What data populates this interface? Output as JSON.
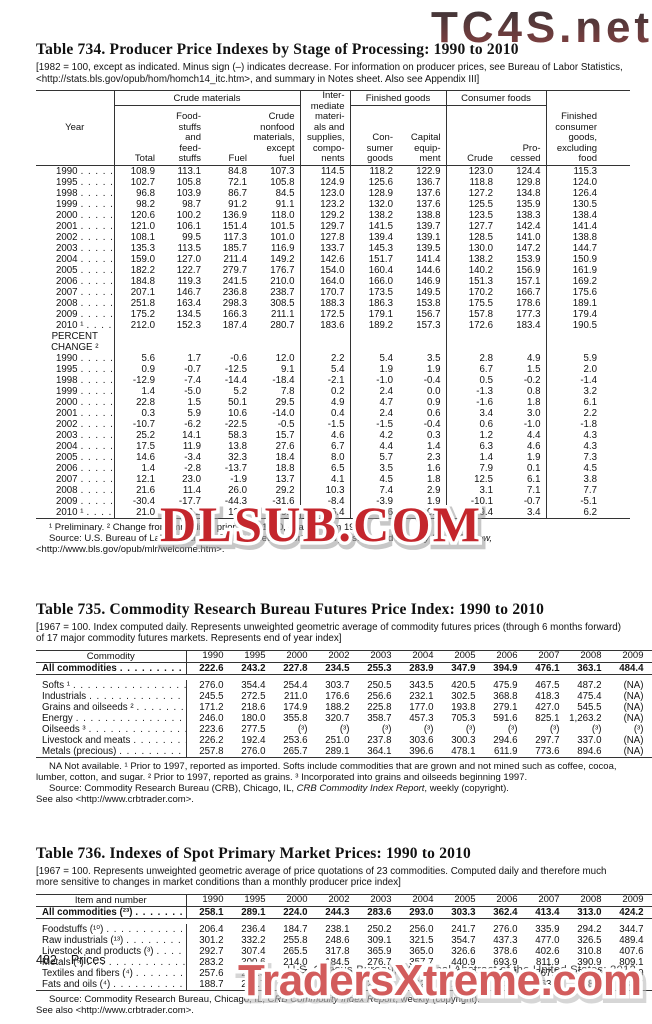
{
  "watermarks": {
    "tc4s": "TC4S.net",
    "dlsub": "DLSUB.COM",
    "traders": "TradersXtreme.com"
  },
  "t734": {
    "title": "Table 734. Producer Price Indexes by Stage of Processing: 1990 to 2010",
    "note": "[1982 = 100, except as indicated. Minus sign (–) indicates decrease. For information on producer prices, see Bureau of Labor Statistics, <http://stats.bls.gov/opub/hom/homch14_itc.htm>, and summary in Notes sheet. Also see Appendix III]",
    "headers": {
      "year": "Year",
      "crude_group": "Crude materials",
      "total": "Total",
      "foodstuffs": "Food-\nstuffs\nand\nfeed-\nstuffs",
      "fuel": "Fuel",
      "crude_nonfood": "Crude\nnonfood\nmaterials,\nexcept\nfuel",
      "intermediate": "Inter-\nmediate\nmateri-\nals and\nsupplies,\ncompo-\nnents",
      "finished_group": "Finished goods",
      "consumer_goods": "Con-\nsumer\ngoods",
      "capital_equipment": "Capital\nequip-\nment",
      "consumer_foods_group": "Consumer foods",
      "crude": "Crude",
      "processed": "Pro-\ncessed",
      "finished_excl_food": "Finished\nconsumer\ngoods,\nexcluding\nfood"
    },
    "rows": [
      {
        "label": "1990",
        "values": [
          "108.9",
          "113.1",
          "84.8",
          "107.3",
          "114.5",
          "118.2",
          "122.9",
          "123.0",
          "124.4",
          "115.3"
        ]
      },
      {
        "label": "1995",
        "values": [
          "102.7",
          "105.8",
          "72.1",
          "105.8",
          "124.9",
          "125.6",
          "136.7",
          "118.8",
          "129.8",
          "124.0"
        ]
      },
      {
        "label": "1998",
        "values": [
          "96.8",
          "103.9",
          "86.7",
          "84.5",
          "123.0",
          "128.9",
          "137.6",
          "127.2",
          "134.8",
          "126.4"
        ]
      },
      {
        "label": "1999",
        "values": [
          "98.2",
          "98.7",
          "91.2",
          "91.1",
          "123.2",
          "132.0",
          "137.6",
          "125.5",
          "135.9",
          "130.5"
        ]
      },
      {
        "label": "2000",
        "values": [
          "120.6",
          "100.2",
          "136.9",
          "118.0",
          "129.2",
          "138.2",
          "138.8",
          "123.5",
          "138.3",
          "138.4"
        ]
      },
      {
        "label": "2001",
        "values": [
          "121.0",
          "106.1",
          "151.4",
          "101.5",
          "129.7",
          "141.5",
          "139.7",
          "127.7",
          "142.4",
          "141.4"
        ]
      },
      {
        "label": "2002",
        "values": [
          "108.1",
          "99.5",
          "117.3",
          "101.0",
          "127.8",
          "139.4",
          "139.1",
          "128.5",
          "141.0",
          "138.8"
        ]
      },
      {
        "label": "2003",
        "values": [
          "135.3",
          "113.5",
          "185.7",
          "116.9",
          "133.7",
          "145.3",
          "139.5",
          "130.0",
          "147.2",
          "144.7"
        ]
      },
      {
        "label": "2004",
        "values": [
          "159.0",
          "127.0",
          "211.4",
          "149.2",
          "142.6",
          "151.7",
          "141.4",
          "138.2",
          "153.9",
          "150.9"
        ]
      },
      {
        "label": "2005",
        "values": [
          "182.2",
          "122.7",
          "279.7",
          "176.7",
          "154.0",
          "160.4",
          "144.6",
          "140.2",
          "156.9",
          "161.9"
        ]
      },
      {
        "label": "2006",
        "values": [
          "184.8",
          "119.3",
          "241.5",
          "210.0",
          "164.0",
          "166.0",
          "146.9",
          "151.3",
          "157.1",
          "169.2"
        ]
      },
      {
        "label": "2007",
        "values": [
          "207.1",
          "146.7",
          "236.8",
          "238.7",
          "170.7",
          "173.5",
          "149.5",
          "170.2",
          "166.7",
          "175.6"
        ]
      },
      {
        "label": "2008",
        "values": [
          "251.8",
          "163.4",
          "298.3",
          "308.5",
          "188.3",
          "186.3",
          "153.8",
          "175.5",
          "178.6",
          "189.1"
        ]
      },
      {
        "label": "2009",
        "values": [
          "175.2",
          "134.5",
          "166.3",
          "211.1",
          "172.5",
          "179.1",
          "156.7",
          "157.8",
          "177.3",
          "179.4"
        ]
      },
      {
        "label": "2010 ¹",
        "values": [
          "212.0",
          "152.3",
          "187.4",
          "280.7",
          "183.6",
          "189.2",
          "157.3",
          "172.6",
          "183.4",
          "190.5"
        ]
      },
      {
        "section": [
          "PERCENT",
          "CHANGE ²"
        ]
      },
      {
        "label": "1990",
        "values": [
          "5.6",
          "1.7",
          "-0.6",
          "12.0",
          "2.2",
          "5.4",
          "3.5",
          "2.8",
          "4.9",
          "5.9"
        ]
      },
      {
        "label": "1995",
        "values": [
          "0.9",
          "-0.7",
          "-12.5",
          "9.1",
          "5.4",
          "1.9",
          "1.9",
          "6.7",
          "1.5",
          "2.0"
        ]
      },
      {
        "label": "1998",
        "values": [
          "-12.9",
          "-7.4",
          "-14.4",
          "-18.4",
          "-2.1",
          "-1.0",
          "-0.4",
          "0.5",
          "-0.2",
          "-1.4"
        ]
      },
      {
        "label": "1999",
        "values": [
          "1.4",
          "-5.0",
          "5.2",
          "7.8",
          "0.2",
          "2.4",
          "0.0",
          "-1.3",
          "0.8",
          "3.2"
        ]
      },
      {
        "label": "2000",
        "values": [
          "22.8",
          "1.5",
          "50.1",
          "29.5",
          "4.9",
          "4.7",
          "0.9",
          "-1.6",
          "1.8",
          "6.1"
        ]
      },
      {
        "label": "2001",
        "values": [
          "0.3",
          "5.9",
          "10.6",
          "-14.0",
          "0.4",
          "2.4",
          "0.6",
          "3.4",
          "3.0",
          "2.2"
        ]
      },
      {
        "label": "2002",
        "values": [
          "-10.7",
          "-6.2",
          "-22.5",
          "-0.5",
          "-1.5",
          "-1.5",
          "-0.4",
          "0.6",
          "-1.0",
          "-1.8"
        ]
      },
      {
        "label": "2003",
        "values": [
          "25.2",
          "14.1",
          "58.3",
          "15.7",
          "4.6",
          "4.2",
          "0.3",
          "1.2",
          "4.4",
          "4.3"
        ]
      },
      {
        "label": "2004",
        "values": [
          "17.5",
          "11.9",
          "13.8",
          "27.6",
          "6.7",
          "4.4",
          "1.4",
          "6.3",
          "4.6",
          "4.3"
        ]
      },
      {
        "label": "2005",
        "values": [
          "14.6",
          "-3.4",
          "32.3",
          "18.4",
          "8.0",
          "5.7",
          "2.3",
          "1.4",
          "1.9",
          "7.3"
        ]
      },
      {
        "label": "2006",
        "values": [
          "1.4",
          "-2.8",
          "-13.7",
          "18.8",
          "6.5",
          "3.5",
          "1.6",
          "7.9",
          "0.1",
          "4.5"
        ]
      },
      {
        "label": "2007",
        "values": [
          "12.1",
          "23.0",
          "-1.9",
          "13.7",
          "4.1",
          "4.5",
          "1.8",
          "12.5",
          "6.1",
          "3.8"
        ]
      },
      {
        "label": "2008",
        "values": [
          "21.6",
          "11.4",
          "26.0",
          "29.2",
          "10.3",
          "7.4",
          "2.9",
          "3.1",
          "7.1",
          "7.7"
        ]
      },
      {
        "label": "2009",
        "values": [
          "-30.4",
          "-17.7",
          "-44.3",
          "-31.6",
          "-8.4",
          "-3.9",
          "1.9",
          "-10.1",
          "-0.7",
          "-5.1"
        ]
      },
      {
        "label": "2010 ¹",
        "values": [
          "21.0",
          "13.2",
          "12.7",
          "33.0",
          "6.4",
          "5.6",
          "0.4",
          "9.4",
          "3.4",
          "6.2"
        ]
      }
    ],
    "footnote": "¹ Preliminary. ² Change from immediate prior year; 1990, change from 1989.",
    "source_parts": [
      {
        "t": "Source: U.S. Bureau of Labor Statistics, PPI Detailed Report, January issues; and "
      },
      {
        "t": "Monthly Labor Review,",
        "i": true
      }
    ],
    "source_url": "<http://www.bls.gov/opub/mlr/welcome.htm>."
  },
  "t735": {
    "title": "Table 735. Commodity Research Bureau Futures Price Index: 1990 to 2010",
    "note": "[1967 = 100. Index computed daily. Represents unweighted geometric average of commodity futures prices (through 6 months forward) of 17 major commodity futures markets. Represents end of year index]",
    "stub_header": "Commodity",
    "years": [
      "1990",
      "1995",
      "2000",
      "2002",
      "2003",
      "2004",
      "2005",
      "2006",
      "2007",
      "2008",
      "2009",
      "2010"
    ],
    "rows": [
      {
        "label": "All commodities",
        "bold": true,
        "rule_below": true,
        "values": [
          "222.6",
          "243.2",
          "227.8",
          "234.5",
          "255.3",
          "283.9",
          "347.9",
          "394.9",
          "476.1",
          "363.1",
          "484.4",
          "629.5"
        ]
      },
      {
        "spacer": true
      },
      {
        "label": "Softs ¹",
        "values": [
          "276.0",
          "354.4",
          "254.4",
          "303.7",
          "250.5",
          "343.5",
          "420.5",
          "475.9",
          "467.5",
          "487.2",
          "(NA)",
          "(NA)"
        ]
      },
      {
        "label": "Industrials",
        "values": [
          "245.5",
          "272.5",
          "211.0",
          "176.6",
          "256.6",
          "232.1",
          "302.5",
          "368.8",
          "418.3",
          "475.4",
          "(NA)",
          "(NA)"
        ]
      },
      {
        "label": "Grains and oilseeds ²",
        "values": [
          "171.2",
          "218.6",
          "174.9",
          "188.2",
          "225.8",
          "177.0",
          "193.8",
          "279.1",
          "427.0",
          "545.5",
          "(NA)",
          "(NA)"
        ]
      },
      {
        "label": "Energy",
        "values": [
          "246.0",
          "180.0",
          "355.8",
          "320.7",
          "358.7",
          "457.3",
          "705.3",
          "591.6",
          "825.1",
          "1,263.2",
          "(NA)",
          "(NA)"
        ]
      },
      {
        "label": "Oilseeds ³",
        "values": [
          "223.6",
          "277.5",
          "(³)",
          "(³)",
          "(³)",
          "(³)",
          "(³)",
          "(³)",
          "(³)",
          "(³)",
          "(³)",
          "(³)"
        ]
      },
      {
        "label": "Livestock and meats",
        "values": [
          "226.2",
          "192.4",
          "253.6",
          "251.0",
          "237.8",
          "303.6",
          "300.3",
          "294.6",
          "297.7",
          "337.0",
          "(NA)",
          "(NA)"
        ]
      },
      {
        "label": "Metals (precious)",
        "values": [
          "257.8",
          "276.0",
          "265.7",
          "289.1",
          "364.1",
          "396.6",
          "478.1",
          "611.9",
          "773.6",
          "894.6",
          "(NA)",
          "(NA)"
        ]
      }
    ],
    "footnote": "NA Not available. ¹ Prior to 1997, reported as imported. Softs include commodities that are grown and not mined such as coffee, cocoa, lumber, cotton, and sugar. ² Prior to 1997, reported as grains. ³ Incorporated into grains and oilseeds beginning 1997.",
    "source_parts": [
      {
        "t": "Source: Commodity Research Bureau (CRB), Chicago, IL, "
      },
      {
        "t": "CRB Commodity Index Report",
        "i": true
      },
      {
        "t": ", weekly (copyright)."
      }
    ],
    "see_also": "See also <http://www.crbtrader.com>."
  },
  "t736": {
    "title": "Table 736. Indexes of Spot Primary Market Prices: 1990 to 2010",
    "note": "[1967 = 100. Represents unweighted geometric average of price quotations of 23 commodities. Computed daily and therefore much more sensitive to changes in market conditions than a monthly producer price index]",
    "stub_header": "Item and number",
    "years": [
      "1990",
      "1995",
      "2000",
      "2002",
      "2003",
      "2004",
      "2005",
      "2006",
      "2007",
      "2008",
      "2009",
      "2010"
    ],
    "rows": [
      {
        "label": "All commodities (²³)",
        "bold": true,
        "rule_below": true,
        "values": [
          "258.1",
          "289.1",
          "224.0",
          "244.3",
          "283.6",
          "293.0",
          "303.3",
          "362.4",
          "413.4",
          "313.0",
          "424.2",
          "520.3"
        ]
      },
      {
        "spacer": true
      },
      {
        "label": "Foodstuffs (¹⁰)",
        "values": [
          "206.4",
          "236.4",
          "184.7",
          "238.1",
          "250.2",
          "256.0",
          "241.7",
          "276.0",
          "335.9",
          "294.2",
          "344.7",
          "440.3"
        ]
      },
      {
        "label": "Raw industrials (¹³)",
        "values": [
          "301.2",
          "332.2",
          "255.8",
          "248.6",
          "309.1",
          "321.5",
          "354.7",
          "437.3",
          "477.0",
          "326.5",
          "489.4",
          "583.8"
        ]
      },
      {
        "label": "Livestock and products (³)",
        "values": [
          "292.7",
          "307.4",
          "265.5",
          "317.8",
          "365.9",
          "365.0",
          "326.6",
          "378.6",
          "402.6",
          "310.8",
          "407.6",
          "528.0"
        ]
      },
      {
        "label": "Metals (⁵)",
        "values": [
          "283.2",
          "300.6",
          "214.0",
          "184.5",
          "276.7",
          "357.7",
          "440.9",
          "693.9",
          "811.9",
          "390.9",
          "809.1",
          "1,006.2"
        ]
      },
      {
        "label": "Textiles and fibers (⁴)",
        "values": [
          "257.6",
          "274.3",
          "245.7",
          "230.2",
          "255.2",
          "237.9",
          "252.5",
          "254.4",
          "267.5",
          "241.3",
          "294.0",
          "342.1"
        ]
      },
      {
        "label": "Fats and oils (⁴)",
        "values": [
          "188.7",
          "226.7",
          "163.6",
          "234.0",
          "297.2",
          "262.6",
          "223.4",
          "273.9",
          "363.4",
          "268.0",
          "339.7",
          "478.3"
        ]
      }
    ],
    "source_parts": [
      {
        "t": "Source: Commodity Research Bureau, Chicago, IL, "
      },
      {
        "t": "CRB Commodity Index Report",
        "i": true
      },
      {
        "t": ", weekly (copyright)."
      }
    ],
    "see_also": "See also <http://www.crbtrader.com>."
  },
  "footer": {
    "page_number": "482",
    "section": "Prices",
    "imprint": "U.S. Census Bureau, Statistical Abstract of the United States: 2012"
  }
}
